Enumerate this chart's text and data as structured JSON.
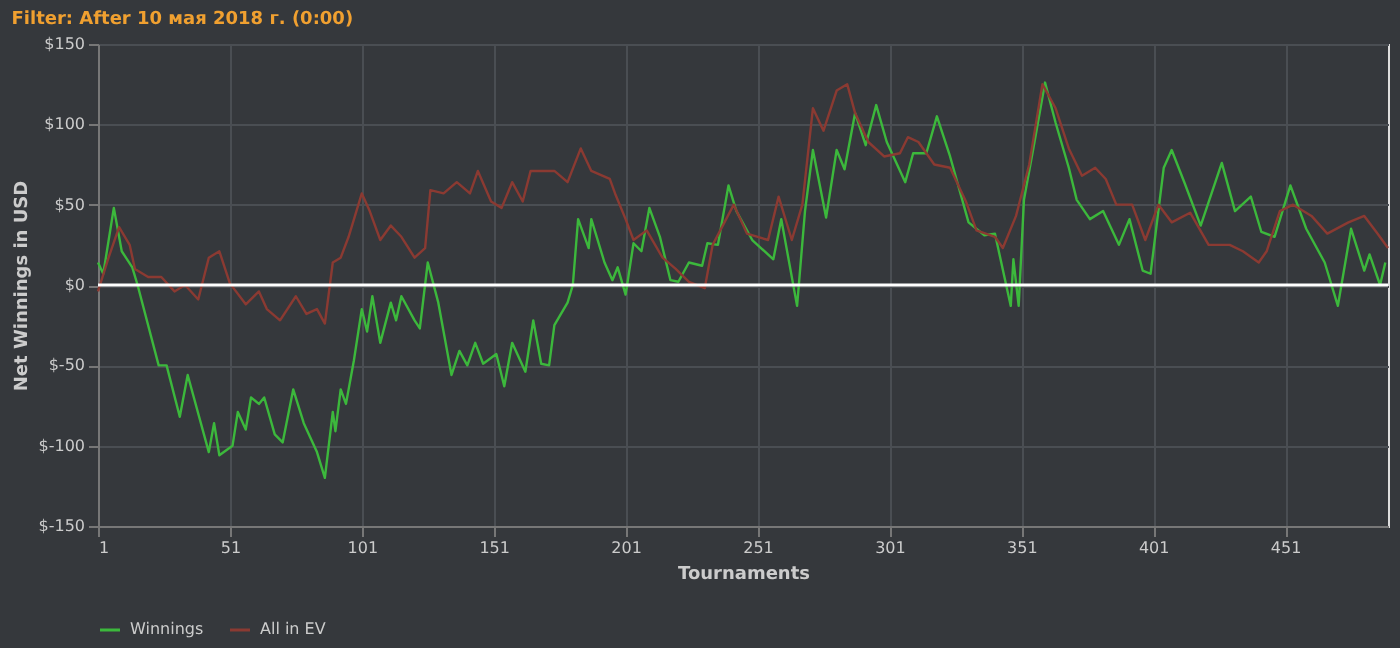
{
  "chart_data": {
    "type": "line",
    "title": "Filter: After 10 мая 2018 г. (0:00)",
    "xlabel": "Tournaments",
    "ylabel": "Net Winnings in USD",
    "xlim": [
      1,
      490
    ],
    "xticks": [
      1,
      51,
      101,
      151,
      201,
      251,
      301,
      351,
      401,
      451
    ],
    "ylim": [
      -150,
      150
    ],
    "yticks": [
      {
        "value": 150,
        "label": "$150"
      },
      {
        "value": 100,
        "label": "$100"
      },
      {
        "value": 50,
        "label": "$50"
      },
      {
        "value": 0,
        "label": "$0"
      },
      {
        "value": -50,
        "label": "$-50"
      },
      {
        "value": -100,
        "label": "$-100"
      },
      {
        "value": -150,
        "label": "$-150"
      }
    ],
    "grid": true,
    "legend": "bottom",
    "line_style": "solid",
    "marker": "none",
    "ref_lines": [
      {
        "axis": "y",
        "value": 0,
        "label": null,
        "color": "#ffffff"
      }
    ],
    "series": [
      {
        "name": "Winnings",
        "color": "#3cb83c",
        "x": [
          1,
          3,
          7,
          10,
          14,
          16,
          24,
          27,
          32,
          35,
          43,
          45,
          47,
          52,
          54,
          57,
          59,
          62,
          64,
          68,
          71,
          75,
          79,
          84,
          87,
          90,
          91,
          93,
          95,
          98,
          101,
          103,
          105,
          108,
          112,
          114,
          116,
          121,
          123,
          126,
          130,
          135,
          138,
          141,
          144,
          147,
          152,
          155,
          158,
          163,
          166,
          169,
          172,
          174,
          179,
          181,
          183,
          187,
          188,
          193,
          196,
          198,
          201,
          204,
          207,
          210,
          214,
          218,
          221,
          225,
          230,
          232,
          236,
          240,
          243,
          249,
          257,
          260,
          266,
          269,
          272,
          277,
          281,
          284,
          288,
          292,
          296,
          300,
          307,
          310,
          315,
          319,
          324,
          331,
          337,
          341,
          347,
          348,
          350,
          352,
          356,
          360,
          364,
          369,
          372,
          377,
          382,
          388,
          392,
          397,
          400,
          405,
          408,
          413,
          419,
          427,
          432,
          438,
          442,
          447,
          453,
          459,
          466,
          471,
          476,
          481,
          483,
          487,
          489
        ],
        "values": [
          14,
          7,
          48,
          21,
          11,
          0,
          -50,
          -50,
          -82,
          -56,
          -104,
          -86,
          -106,
          -100,
          -79,
          -90,
          -70,
          -74,
          -70,
          -93,
          -98,
          -65,
          -86,
          -104,
          -120,
          -79,
          -91,
          -65,
          -74,
          -47,
          -15,
          -29,
          -7,
          -36,
          -11,
          -22,
          -7,
          -22,
          -27,
          14,
          -11,
          -56,
          -41,
          -50,
          -36,
          -49,
          -43,
          -63,
          -36,
          -54,
          -22,
          -49,
          -50,
          -25,
          -11,
          0,
          41,
          23,
          41,
          14,
          3,
          11,
          -6,
          26,
          21,
          48,
          30,
          3,
          2,
          14,
          12,
          26,
          25,
          62,
          46,
          28,
          16,
          41,
          -13,
          46,
          84,
          42,
          84,
          72,
          107,
          87,
          112,
          89,
          64,
          82,
          82,
          105,
          80,
          39,
          31,
          32,
          -13,
          16,
          -13,
          53,
          89,
          126,
          101,
          73,
          53,
          41,
          46,
          25,
          41,
          9,
          7,
          73,
          84,
          63,
          37,
          76,
          46,
          55,
          33,
          30,
          62,
          35,
          14,
          -13,
          35,
          9,
          19,
          0,
          14
        ]
      },
      {
        "name": "All in EV",
        "color": "#8b3a32",
        "x": [
          1,
          5,
          9,
          13,
          15,
          20,
          25,
          30,
          34,
          39,
          43,
          47,
          51,
          57,
          62,
          65,
          70,
          76,
          80,
          84,
          87,
          90,
          93,
          96,
          101,
          104,
          108,
          112,
          116,
          121,
          125,
          127,
          132,
          137,
          142,
          145,
          150,
          154,
          158,
          162,
          165,
          174,
          179,
          184,
          188,
          195,
          197,
          201,
          204,
          209,
          215,
          220,
          225,
          231,
          234,
          242,
          247,
          255,
          259,
          264,
          268,
          272,
          276,
          281,
          285,
          288,
          293,
          299,
          305,
          308,
          312,
          318,
          324,
          330,
          334,
          341,
          344,
          349,
          354,
          359,
          364,
          369,
          374,
          379,
          383,
          387,
          393,
          398,
          403,
          408,
          415,
          422,
          430,
          435,
          441,
          444,
          449,
          454,
          461,
          467,
          475,
          481,
          486,
          490
        ],
        "values": [
          -4,
          17,
          36,
          25,
          10,
          5,
          5,
          -4,
          0,
          -9,
          17,
          21,
          1,
          -12,
          -4,
          -15,
          -22,
          -7,
          -18,
          -15,
          -24,
          14,
          17,
          30,
          57,
          46,
          28,
          37,
          30,
          17,
          23,
          59,
          57,
          64,
          57,
          71,
          52,
          48,
          64,
          52,
          71,
          71,
          64,
          85,
          71,
          66,
          57,
          41,
          28,
          34,
          17,
          10,
          2,
          -2,
          25,
          50,
          32,
          28,
          55,
          28,
          50,
          110,
          96,
          121,
          125,
          107,
          89,
          80,
          82,
          92,
          89,
          75,
          73,
          52,
          34,
          30,
          23,
          43,
          75,
          125,
          110,
          85,
          68,
          73,
          66,
          50,
          50,
          28,
          50,
          39,
          45,
          25,
          25,
          21,
          14,
          21,
          46,
          50,
          43,
          32,
          39,
          43,
          32,
          23
        ]
      }
    ]
  }
}
